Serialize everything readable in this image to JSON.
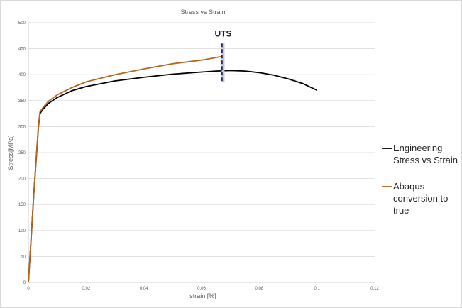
{
  "chart_data": {
    "type": "line",
    "title": "Stress vs Strain",
    "xlabel": "strain [%]",
    "ylabel": "Stress[MPa]",
    "xlim": [
      0,
      0.12
    ],
    "ylim": [
      0,
      500
    ],
    "x_ticks": [
      "0",
      "0.02",
      "0.04",
      "0.06",
      "0.08",
      "0.1",
      "0.12"
    ],
    "y_ticks": [
      "0",
      "50",
      "100",
      "150",
      "200",
      "250",
      "300",
      "350",
      "400",
      "450",
      "500"
    ],
    "grid": "horizontal",
    "legend_position": "right",
    "series": [
      {
        "name": "Engineering Stress vs Strain",
        "color": "#000000",
        "points": [
          [
            0,
            0
          ],
          [
            0.001,
            90
          ],
          [
            0.002,
            180
          ],
          [
            0.003,
            260
          ],
          [
            0.0035,
            300
          ],
          [
            0.004,
            325
          ],
          [
            0.005,
            333
          ],
          [
            0.007,
            345
          ],
          [
            0.01,
            356
          ],
          [
            0.015,
            369
          ],
          [
            0.02,
            377
          ],
          [
            0.03,
            388
          ],
          [
            0.04,
            395
          ],
          [
            0.05,
            401
          ],
          [
            0.06,
            405
          ],
          [
            0.065,
            407
          ],
          [
            0.07,
            408
          ],
          [
            0.075,
            407
          ],
          [
            0.08,
            404
          ],
          [
            0.085,
            399
          ],
          [
            0.09,
            392
          ],
          [
            0.095,
            383
          ],
          [
            0.1,
            370
          ]
        ]
      },
      {
        "name": "Abaqus conversion to true",
        "color": "#b5651d",
        "points": [
          [
            0,
            0
          ],
          [
            0.001,
            90
          ],
          [
            0.002,
            180
          ],
          [
            0.003,
            262
          ],
          [
            0.0035,
            302
          ],
          [
            0.004,
            328
          ],
          [
            0.005,
            336
          ],
          [
            0.007,
            349
          ],
          [
            0.01,
            361
          ],
          [
            0.015,
            375
          ],
          [
            0.02,
            386
          ],
          [
            0.03,
            400
          ],
          [
            0.04,
            411
          ],
          [
            0.05,
            421
          ],
          [
            0.06,
            428
          ],
          [
            0.067,
            435
          ]
        ]
      }
    ],
    "annotations": [
      {
        "text": "UTS",
        "x": 0.067,
        "y_range": [
          385,
          460
        ]
      }
    ]
  }
}
